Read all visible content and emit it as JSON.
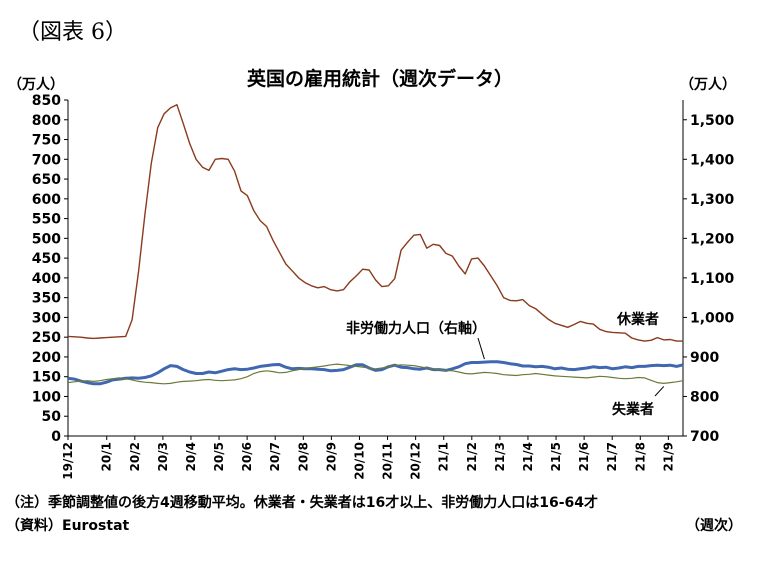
{
  "figure_label": "（図表 6）",
  "chart_data": {
    "type": "line",
    "title": "英国の雇用統計（週次データ）",
    "left_unit": "（万人）",
    "right_unit": "（万人）",
    "x_unit": "（週次）",
    "note": "（注）季節調整値の後方4週移動平均。休業者・失業者は16才以上、非労働力人口は16-64才",
    "source": "（資料）Eurostat",
    "x_tick_labels": [
      "19/12",
      "20/1",
      "20/2",
      "20/3",
      "20/4",
      "20/5",
      "20/6",
      "20/7",
      "20/8",
      "20/9",
      "20/10",
      "20/11",
      "20/12",
      "21/1",
      "21/2",
      "21/3",
      "21/4",
      "21/5",
      "21/6",
      "21/7",
      "21/8",
      "21/9"
    ],
    "ylim_left": [
      0,
      850
    ],
    "yticks_left": [
      0,
      50,
      100,
      150,
      200,
      250,
      300,
      350,
      400,
      450,
      500,
      550,
      600,
      650,
      700,
      750,
      800,
      850
    ],
    "ytick_labels_left": [
      "0",
      "50",
      "100",
      "150",
      "200",
      "250",
      "300",
      "350",
      "400",
      "450",
      "500",
      "550",
      "600",
      "650",
      "700",
      "750",
      "800",
      "850"
    ],
    "ylim_right": [
      700,
      1550
    ],
    "yticks_right": [
      700,
      800,
      900,
      1000,
      1100,
      1200,
      1300,
      1400,
      1500
    ],
    "ytick_labels_right": [
      "700",
      "800",
      "900",
      "1,000",
      "1,100",
      "1,200",
      "1,300",
      "1,400",
      "1,500"
    ],
    "grid": false,
    "series": [
      {
        "name": "休業者",
        "axis": "left",
        "color": "#8b3a1c",
        "x": [
          0,
          1,
          2,
          3,
          4,
          5,
          6,
          7,
          8,
          9,
          10,
          11,
          12,
          13,
          14,
          15,
          16,
          17,
          18,
          19,
          20,
          21,
          22,
          23,
          24,
          25,
          26,
          27,
          28,
          29,
          30,
          31,
          32,
          33,
          34,
          35,
          36,
          37,
          38,
          39,
          40,
          41,
          42,
          43,
          44,
          45,
          46,
          47,
          48,
          49,
          50,
          51,
          52,
          53,
          54,
          55,
          56,
          57,
          58,
          59,
          60,
          61,
          62,
          63,
          64,
          65,
          66,
          67,
          68,
          69,
          70,
          71,
          72,
          73,
          74,
          75,
          76,
          77,
          78,
          79,
          80,
          81,
          82,
          83,
          84,
          85,
          86,
          87,
          88,
          89,
          90,
          91,
          92,
          93,
          94,
          95,
          96
        ],
        "values": [
          252,
          251,
          250,
          248,
          247,
          248,
          249,
          250,
          251,
          252,
          294,
          415,
          560,
          690,
          780,
          815,
          830,
          838,
          790,
          740,
          700,
          680,
          672,
          700,
          702,
          700,
          670,
          620,
          608,
          570,
          545,
          530,
          495,
          465,
          435,
          418,
          400,
          388,
          380,
          375,
          378,
          370,
          367,
          370,
          390,
          405,
          422,
          420,
          395,
          378,
          380,
          398,
          470,
          490,
          508,
          510,
          475,
          485,
          482,
          462,
          455,
          430,
          410,
          448,
          450,
          430,
          405,
          380,
          350,
          343,
          342,
          345,
          330,
          322,
          308,
          295,
          285,
          280,
          275,
          282,
          290,
          285,
          283,
          270,
          264,
          262,
          261,
          260,
          248,
          243,
          240,
          242,
          249,
          243,
          244,
          240,
          240
        ]
      },
      {
        "name": "非労働力人口（右軸）",
        "axis": "right",
        "color": "#3f68b0",
        "x": [
          0,
          1,
          2,
          3,
          4,
          5,
          6,
          7,
          8,
          9,
          10,
          11,
          12,
          13,
          14,
          15,
          16,
          17,
          18,
          19,
          20,
          21,
          22,
          23,
          24,
          25,
          26,
          27,
          28,
          29,
          30,
          31,
          32,
          33,
          34,
          35,
          36,
          37,
          38,
          39,
          40,
          41,
          42,
          43,
          44,
          45,
          46,
          47,
          48,
          49,
          50,
          51,
          52,
          53,
          54,
          55,
          56,
          57,
          58,
          59,
          60,
          61,
          62,
          63,
          64,
          65,
          66,
          67,
          68,
          69,
          70,
          71,
          72,
          73,
          74,
          75,
          76,
          77,
          78,
          79,
          80,
          81,
          82,
          83,
          84,
          85,
          86,
          87,
          88,
          89,
          90,
          91,
          92,
          93,
          94,
          95,
          96
        ],
        "values": [
          846,
          844,
          839,
          835,
          832,
          832,
          836,
          842,
          844,
          846,
          847,
          846,
          848,
          852,
          860,
          870,
          878,
          876,
          868,
          862,
          858,
          858,
          862,
          860,
          864,
          868,
          870,
          868,
          869,
          872,
          876,
          878,
          880,
          881,
          874,
          870,
          871,
          870,
          870,
          869,
          868,
          865,
          866,
          868,
          874,
          880,
          880,
          872,
          866,
          868,
          875,
          879,
          874,
          873,
          870,
          869,
          872,
          868,
          868,
          866,
          870,
          875,
          883,
          886,
          886,
          887,
          888,
          888,
          886,
          883,
          881,
          877,
          877,
          875,
          876,
          874,
          870,
          872,
          869,
          868,
          870,
          872,
          875,
          873,
          874,
          870,
          872,
          875,
          873,
          876,
          876,
          878,
          879,
          878,
          879,
          876,
          880
        ]
      },
      {
        "name": "失業者",
        "axis": "left",
        "color": "#6b7a3a",
        "x": [
          0,
          1,
          2,
          3,
          4,
          5,
          6,
          7,
          8,
          9,
          10,
          11,
          12,
          13,
          14,
          15,
          16,
          17,
          18,
          19,
          20,
          21,
          22,
          23,
          24,
          25,
          26,
          27,
          28,
          29,
          30,
          31,
          32,
          33,
          34,
          35,
          36,
          37,
          38,
          39,
          40,
          41,
          42,
          43,
          44,
          45,
          46,
          47,
          48,
          49,
          50,
          51,
          52,
          53,
          54,
          55,
          56,
          57,
          58,
          59,
          60,
          61,
          62,
          63,
          64,
          65,
          66,
          67,
          68,
          69,
          70,
          71,
          72,
          73,
          74,
          75,
          76,
          77,
          78,
          79,
          80,
          81,
          82,
          83,
          84,
          85,
          86,
          87,
          88,
          89,
          90,
          91,
          92,
          93,
          94,
          95,
          96
        ],
        "values": [
          135,
          137,
          139,
          140,
          138,
          140,
          143,
          145,
          147,
          145,
          142,
          138,
          136,
          135,
          133,
          132,
          133,
          136,
          138,
          139,
          140,
          142,
          143,
          141,
          140,
          141,
          142,
          145,
          150,
          158,
          163,
          165,
          163,
          160,
          161,
          165,
          168,
          171,
          173,
          175,
          177,
          180,
          182,
          180,
          178,
          176,
          174,
          172,
          170,
          172,
          175,
          178,
          180,
          179,
          178,
          175,
          172,
          170,
          168,
          166,
          165,
          162,
          158,
          157,
          159,
          161,
          160,
          158,
          155,
          154,
          153,
          155,
          156,
          158,
          156,
          154,
          152,
          151,
          150,
          149,
          148,
          147,
          149,
          151,
          150,
          148,
          146,
          145,
          146,
          148,
          147,
          141,
          135,
          133,
          135,
          137,
          140
        ]
      }
    ],
    "annotations": [
      {
        "text": "休業者",
        "series": "休業者"
      },
      {
        "text": "非労働力人口（右軸）",
        "series": "非労働力人口（右軸）"
      },
      {
        "text": "失業者",
        "series": "失業者"
      }
    ]
  }
}
